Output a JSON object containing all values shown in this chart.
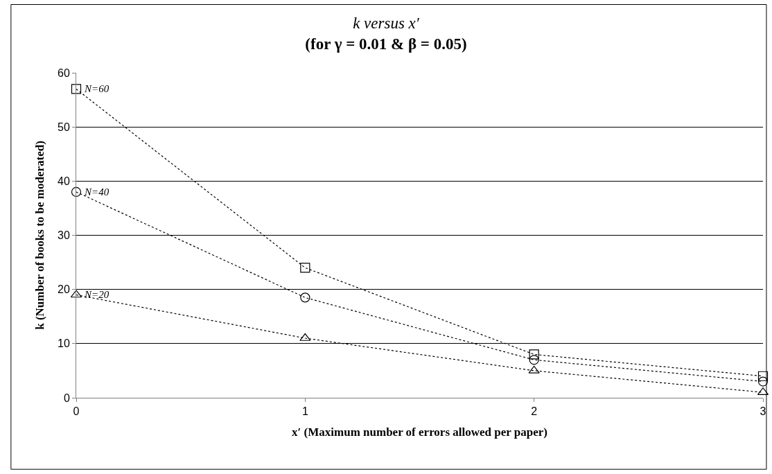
{
  "chart_data": {
    "type": "line",
    "title": "k versus x′",
    "subtitle": "(for γ = 0.01 & β = 0.05)",
    "xlabel": "x′ (Maximum number of errors allowed per paper)",
    "ylabel": "k (Number of books to be moderated)",
    "x": [
      0,
      1,
      2,
      3
    ],
    "xlim": [
      0,
      3
    ],
    "xticks": [
      0,
      1,
      2,
      3
    ],
    "ylim": [
      0,
      60
    ],
    "yticks": [
      0,
      10,
      20,
      30,
      40,
      50,
      60
    ],
    "grid": "y",
    "legend": false,
    "line_style": "dotted",
    "series": [
      {
        "name": "N=60",
        "color": "#000000",
        "marker": "square",
        "values": [
          57,
          24,
          8,
          4
        ]
      },
      {
        "name": "N=40",
        "color": "#000000",
        "marker": "circle",
        "values": [
          38,
          18.5,
          7,
          3
        ]
      },
      {
        "name": "N=20",
        "color": "#000000",
        "marker": "triangle",
        "values": [
          19,
          11,
          5,
          1
        ]
      }
    ]
  }
}
